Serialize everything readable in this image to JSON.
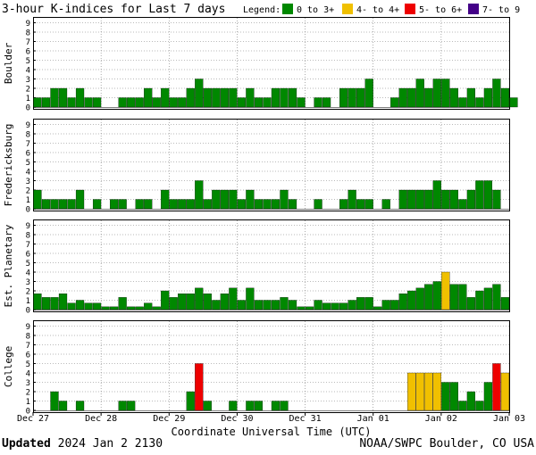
{
  "chart_data": {
    "type": "bar",
    "title": "3-hour K-indices for Last 7 days",
    "legend": {
      "label": "Legend:",
      "entries": [
        {
          "name": "0 to 3+",
          "color": "#008800"
        },
        {
          "name": "4- to 4+",
          "color": "#f0c000"
        },
        {
          "name": "5- to 6+",
          "color": "#ee0000"
        },
        {
          "name": "7- to 9",
          "color": "#440088"
        }
      ]
    },
    "xlabel": "Coordinate Universal Time (UTC)",
    "x_ticks": [
      "Dec 27",
      "Dec 28",
      "Dec 29",
      "Dec 30",
      "Dec 31",
      "Jan 01",
      "Jan 02",
      "Jan 03"
    ],
    "y_ticks": [
      "0",
      "1",
      "2",
      "3",
      "4",
      "5",
      "6",
      "7",
      "8",
      "9"
    ],
    "ylim": [
      0,
      9
    ],
    "intervals_per_day": 8,
    "panels": [
      {
        "name": "Boulder",
        "values": [
          1,
          1,
          2,
          2,
          1,
          2,
          1,
          1,
          0,
          0,
          1,
          1,
          1,
          2,
          1,
          2,
          1,
          1,
          2,
          3,
          2,
          2,
          2,
          2,
          1,
          2,
          1,
          1,
          2,
          2,
          2,
          1,
          0,
          1,
          1,
          0,
          2,
          2,
          2,
          3,
          0,
          0,
          1,
          2,
          2,
          3,
          2,
          3,
          3,
          2,
          1,
          2,
          1,
          2,
          3,
          2,
          1,
          0
        ]
      },
      {
        "name": "Fredericksburg",
        "values": [
          2,
          1,
          1,
          1,
          1,
          2,
          0,
          1,
          0,
          1,
          1,
          0,
          1,
          1,
          0,
          2,
          1,
          1,
          1,
          3,
          1,
          2,
          2,
          2,
          1,
          2,
          1,
          1,
          1,
          2,
          1,
          0,
          0,
          1,
          0,
          0,
          1,
          2,
          1,
          1,
          0,
          1,
          0,
          2,
          2,
          2,
          2,
          3,
          2,
          2,
          1,
          2,
          3,
          3,
          2,
          0
        ]
      },
      {
        "name": "Est. Planetary",
        "values": [
          1.7,
          1.3,
          1.3,
          1.7,
          0.7,
          1,
          0.7,
          0.7,
          0.3,
          0.3,
          1.3,
          0.3,
          0.3,
          0.7,
          0.3,
          2,
          1.3,
          1.7,
          1.7,
          2.3,
          1.7,
          1,
          1.7,
          2.3,
          1,
          2.3,
          1,
          1,
          1,
          1.3,
          1,
          0.3,
          0.3,
          1,
          0.7,
          0.7,
          0.7,
          1,
          1.3,
          1.3,
          0.3,
          1,
          1,
          1.7,
          2,
          2.3,
          2.7,
          3,
          4,
          2.7,
          2.7,
          1.3,
          2,
          2.3,
          2.7,
          1.3
        ]
      },
      {
        "name": "College",
        "values": [
          0,
          0,
          2,
          1,
          0,
          1,
          0,
          0,
          0,
          0,
          1,
          1,
          0,
          0,
          0,
          0,
          0,
          0,
          2,
          5,
          1,
          0,
          0,
          1,
          0,
          1,
          1,
          0,
          1,
          1,
          0,
          0,
          0,
          0,
          0,
          0,
          0,
          0,
          0,
          0,
          0,
          0,
          0,
          0,
          4,
          4,
          4,
          4,
          3,
          3,
          1,
          2,
          1,
          3,
          5,
          4,
          0,
          0
        ]
      }
    ]
  },
  "footer": {
    "updated_label": "Updated",
    "updated_value": "2024 Jan  2 2130",
    "credit": "NOAA/SWPC Boulder, CO USA"
  }
}
